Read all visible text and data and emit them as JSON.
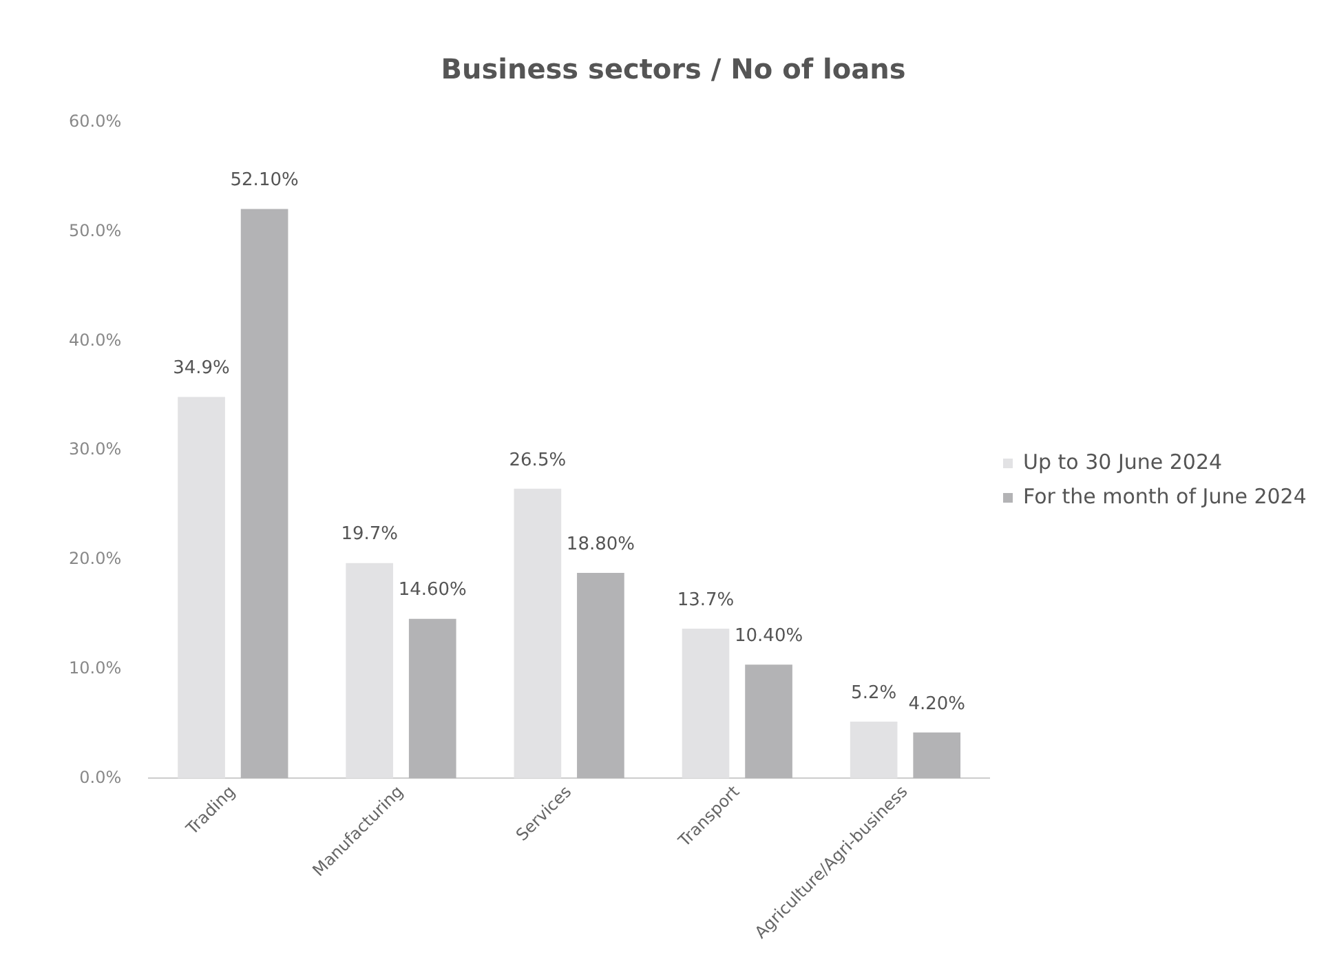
{
  "chart_data": {
    "type": "bar",
    "title": "Business sectors / No of loans",
    "categories": [
      "Trading",
      "Manufacturing",
      "Services",
      "Transport",
      "Agriculture/Agri-business"
    ],
    "series": [
      {
        "name": "Up to 30 June 2024",
        "color": "#e2e2e4",
        "values": [
          34.9,
          19.7,
          26.5,
          13.7,
          5.2
        ],
        "value_labels": [
          "34.9%",
          "19.7%",
          "26.5%",
          "13.7%",
          "5.2%"
        ]
      },
      {
        "name": "For the month of June 2024",
        "color": "#b3b3b5",
        "values": [
          52.1,
          14.6,
          18.8,
          10.4,
          4.2
        ],
        "value_labels": [
          "52.10%",
          "14.60%",
          "18.80%",
          "10.40%",
          "4.20%"
        ]
      }
    ],
    "ylim": [
      0,
      60
    ],
    "yticks": [
      {
        "value": 0,
        "label": "0.0%"
      },
      {
        "value": 10,
        "label": "10.0%"
      },
      {
        "value": 20,
        "label": "20.0%"
      },
      {
        "value": 30,
        "label": "30.0%"
      },
      {
        "value": 40,
        "label": "40.0%"
      },
      {
        "value": 50,
        "label": "50.0%"
      },
      {
        "value": 60,
        "label": "60.0%"
      }
    ],
    "grid": false,
    "legend": "right"
  }
}
